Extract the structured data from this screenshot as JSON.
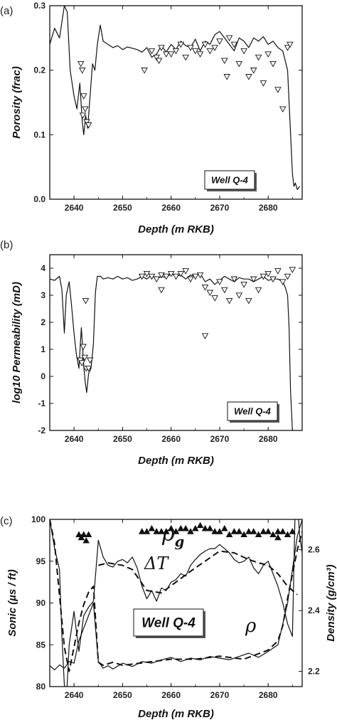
{
  "chart_data": [
    {
      "type": "line",
      "panel": "(a)",
      "xlabel": "Depth (m RKB)",
      "ylabel": "Porosity (frac)",
      "xlim": [
        2635,
        2687
      ],
      "ylim": [
        0.0,
        0.3
      ],
      "xticks": [
        "2640",
        "2650",
        "2660",
        "2670",
        "2680"
      ],
      "yticks": [
        "0.0",
        "0.1",
        "0.2",
        "0.3"
      ],
      "legend": "Well Q-4",
      "series": [
        {
          "style": "line",
          "x": [
            2635,
            2636,
            2637,
            2638,
            2638.6,
            2639.2,
            2640,
            2640.6,
            2641.2,
            2641.7,
            2642,
            2642.4,
            2642.8,
            2643.3,
            2643.8,
            2644.3,
            2644.8,
            2645.4,
            2646,
            2647,
            2648,
            2649,
            2650,
            2651,
            2652,
            2653,
            2654,
            2655,
            2656,
            2657,
            2658,
            2659,
            2660,
            2661,
            2662,
            2663,
            2664,
            2665,
            2666,
            2667,
            2668,
            2669,
            2670,
            2671,
            2672,
            2673,
            2674,
            2675,
            2676,
            2677,
            2678,
            2679,
            2680,
            2681,
            2682,
            2683,
            2684,
            2684.5,
            2685,
            2685.3,
            2685.6,
            2686,
            2686.5
          ],
          "y": [
            0.24,
            0.265,
            0.25,
            0.3,
            0.29,
            0.2,
            0.16,
            0.14,
            0.18,
            0.12,
            0.1,
            0.13,
            0.11,
            0.16,
            0.21,
            0.2,
            0.24,
            0.27,
            0.245,
            0.24,
            0.235,
            0.238,
            0.232,
            0.236,
            0.234,
            0.232,
            0.228,
            0.235,
            0.22,
            0.225,
            0.238,
            0.228,
            0.24,
            0.232,
            0.245,
            0.238,
            0.235,
            0.248,
            0.23,
            0.245,
            0.24,
            0.255,
            0.26,
            0.25,
            0.24,
            0.23,
            0.25,
            0.245,
            0.235,
            0.25,
            0.245,
            0.252,
            0.24,
            0.245,
            0.235,
            0.23,
            0.2,
            0.12,
            0.04,
            0.02,
            0.025,
            0.015,
            0.02
          ]
        },
        {
          "style": "triangle-down",
          "x": [
            2641.4,
            2641.7,
            2642,
            2642.3,
            2642.6,
            2643,
            2641.8,
            2654.5,
            2656,
            2657,
            2657.5,
            2658,
            2659,
            2660,
            2661,
            2662,
            2663,
            2664,
            2665,
            2666,
            2667,
            2668,
            2669,
            2670,
            2671,
            2671.5,
            2672,
            2673,
            2674,
            2675,
            2676,
            2677,
            2678,
            2679,
            2680,
            2681,
            2682,
            2683,
            2684,
            2684.5
          ],
          "y": [
            0.21,
            0.2,
            0.16,
            0.14,
            0.12,
            0.115,
            0.13,
            0.2,
            0.23,
            0.22,
            0.215,
            0.235,
            0.225,
            0.225,
            0.23,
            0.24,
            0.22,
            0.235,
            0.23,
            0.225,
            0.24,
            0.23,
            0.235,
            0.245,
            0.215,
            0.19,
            0.25,
            0.24,
            0.21,
            0.23,
            0.19,
            0.2,
            0.22,
            0.18,
            0.225,
            0.21,
            0.17,
            0.14,
            0.235,
            0.24
          ]
        }
      ]
    },
    {
      "type": "line",
      "panel": "(b)",
      "xlabel": "Depth (m RKB)",
      "ylabel": "log10 Permeability (mD)",
      "xlim": [
        2635,
        2687
      ],
      "ylim": [
        -2,
        4.5
      ],
      "xticks": [
        "2640",
        "2650",
        "2660",
        "2670",
        "2680"
      ],
      "yticks": [
        "-2",
        "-1",
        "0",
        "1",
        "2",
        "3",
        "4"
      ],
      "legend": "Well Q-4",
      "series": [
        {
          "style": "line",
          "x": [
            2635,
            2636,
            2637,
            2637.5,
            2638,
            2638.4,
            2639,
            2639.5,
            2640,
            2640.5,
            2641,
            2641.5,
            2642,
            2642.3,
            2642.6,
            2643,
            2643.5,
            2644,
            2644.4,
            2644.8,
            2645.5,
            2646,
            2647,
            2648,
            2649,
            2650,
            2651,
            2652,
            2653,
            2654,
            2655,
            2656,
            2657,
            2658,
            2659,
            2660,
            2661,
            2662,
            2663,
            2664,
            2665,
            2666,
            2667,
            2668,
            2669,
            2670,
            2671,
            2672,
            2673,
            2674,
            2675,
            2676,
            2677,
            2678,
            2679,
            2680,
            2681,
            2682,
            2683,
            2683.5,
            2684,
            2684.3,
            2684.6,
            2685
          ],
          "y": [
            3.6,
            3.55,
            3.7,
            3.2,
            1.6,
            3.0,
            3.5,
            2.6,
            1.6,
            0.8,
            0.3,
            1.8,
            0.4,
            -0.2,
            -0.6,
            0.1,
            0.3,
            1.2,
            3.1,
            3.7,
            3.7,
            3.6,
            3.65,
            3.6,
            3.7,
            3.6,
            3.65,
            3.55,
            3.6,
            3.7,
            3.6,
            3.75,
            3.6,
            3.7,
            3.65,
            3.8,
            3.7,
            3.75,
            3.6,
            3.75,
            3.7,
            3.8,
            3.5,
            3.6,
            3.4,
            3.55,
            3.7,
            3.6,
            3.5,
            3.65,
            3.6,
            3.6,
            3.5,
            3.6,
            3.7,
            3.55,
            3.6,
            3.6,
            3.5,
            3.3,
            3.0,
            1.8,
            -0.5,
            -2.0
          ]
        },
        {
          "style": "triangle-down",
          "x": [
            2641.3,
            2641.6,
            2641.9,
            2642.2,
            2642.5,
            2643,
            2643.3,
            2642.4,
            2654,
            2655,
            2656,
            2657,
            2658,
            2659,
            2660,
            2661,
            2662,
            2663,
            2664,
            2665,
            2666,
            2667,
            2668,
            2669,
            2670,
            2671,
            2672,
            2673,
            2674,
            2675,
            2676,
            2677,
            2678,
            2679,
            2680,
            2681,
            2682,
            2683,
            2684,
            2685,
            2658,
            2667
          ],
          "y": [
            0.6,
            0.5,
            1.1,
            0.7,
            0.3,
            0.3,
            0.6,
            2.8,
            3.7,
            3.8,
            3.7,
            3.6,
            3.75,
            3.7,
            3.8,
            3.7,
            3.8,
            3.9,
            3.6,
            3.7,
            3.75,
            3.3,
            3.1,
            2.9,
            3.5,
            3.2,
            2.8,
            3.6,
            3.0,
            3.4,
            2.8,
            3.6,
            3.2,
            3.7,
            3.8,
            3.6,
            3.9,
            3.5,
            3.7,
            3.95,
            3.2,
            1.5
          ]
        }
      ]
    },
    {
      "type": "line",
      "panel": "(c)",
      "xlabel": "Depth (m RKB)",
      "ylabel": "Sonic (µs / ft)",
      "ylabel_right": "Density (g/cm³)",
      "xlim": [
        2635,
        2687
      ],
      "ylim": [
        80,
        100
      ],
      "ylim_right": [
        2.15,
        2.7
      ],
      "xticks": [
        "2640",
        "2650",
        "2660",
        "2670",
        "2680"
      ],
      "yticks": [
        "80",
        "85",
        "90",
        "95",
        "100"
      ],
      "yticks_right": [
        "2.2",
        "2.4",
        "2.6"
      ],
      "legend": "Well Q-4",
      "annotations": [
        "ρg",
        "ΔT",
        "ρ"
      ],
      "series": [
        {
          "style": "line",
          "axis": "left",
          "x": [
            2635,
            2636,
            2637,
            2637.5,
            2638,
            2638.5,
            2639,
            2640,
            2641,
            2642,
            2643,
            2644,
            2645,
            2646,
            2647,
            2648,
            2649,
            2650,
            2651,
            2652,
            2653,
            2654,
            2655,
            2656,
            2657,
            2658,
            2659,
            2660,
            2661,
            2662,
            2663,
            2664,
            2665,
            2666,
            2667,
            2668,
            2669,
            2670,
            2671,
            2672,
            2673,
            2674,
            2675,
            2676,
            2677,
            2678,
            2679,
            2680,
            2681,
            2682,
            2683,
            2684,
            2685,
            2685.5,
            2686,
            2686.5,
            2687
          ],
          "y": [
            100,
            96.5,
            94,
            86,
            80.2,
            79.3,
            85,
            89,
            84.2,
            88.5,
            89.5,
            90.2,
            97.5,
            95.5,
            94.5,
            94.3,
            95,
            95.2,
            94.8,
            95.5,
            94.2,
            92,
            90.5,
            91.5,
            90.2,
            91.8,
            91.5,
            92.5,
            92.8,
            93.5,
            93.2,
            94.5,
            95.2,
            95.8,
            96.2,
            96.5,
            96.5,
            97,
            96.5,
            96,
            95.2,
            94.8,
            95,
            95.5,
            94.2,
            93.5,
            94.5,
            95,
            93.5,
            92,
            90,
            87.5,
            86,
            100,
            102,
            98,
            96
          ]
        },
        {
          "style": "line",
          "axis": "left",
          "x": [
            2635,
            2636,
            2637,
            2638,
            2639,
            2640,
            2641,
            2642,
            2643,
            2644,
            2645,
            2646,
            2647,
            2648,
            2650,
            2652,
            2654,
            2656,
            2658,
            2660,
            2662,
            2664,
            2666,
            2668,
            2670,
            2672,
            2674,
            2676,
            2678,
            2680,
            2682,
            2683,
            2684,
            2685,
            2686,
            2687
          ],
          "y": [
            82.5,
            82,
            82.6,
            82.2,
            83,
            82.8,
            85.5,
            87,
            88.5,
            90,
            83,
            82.2,
            82.5,
            82.1,
            82.8,
            82.4,
            83,
            82.8,
            83.2,
            83.5,
            83,
            83.4,
            83.2,
            83.6,
            83.4,
            83.2,
            83.6,
            84,
            83.5,
            84.2,
            85,
            87.5,
            90,
            94,
            98,
            100
          ]
        },
        {
          "style": "dashed",
          "axis": "right",
          "x": [
            2635,
            2636,
            2637,
            2638,
            2639,
            2640,
            2641,
            2642,
            2643,
            2644,
            2645,
            2646,
            2648,
            2650,
            2655,
            2660,
            2665,
            2670,
            2675,
            2680,
            2682,
            2683,
            2684,
            2685,
            2686,
            2687
          ],
          "y": [
            2.7,
            2.62,
            2.45,
            2.28,
            2.2,
            2.28,
            2.36,
            2.42,
            2.46,
            2.48,
            2.23,
            2.22,
            2.23,
            2.22,
            2.23,
            2.24,
            2.24,
            2.25,
            2.24,
            2.27,
            2.3,
            2.35,
            2.44,
            2.52,
            2.6,
            2.66
          ]
        },
        {
          "style": "dashed",
          "axis": "left",
          "x": [
            2645,
            2647,
            2650,
            2652,
            2655,
            2658,
            2661,
            2664,
            2667,
            2670,
            2673,
            2676,
            2678,
            2680,
            2682,
            2684,
            2686
          ],
          "y": [
            94.5,
            94.8,
            94.5,
            94,
            91.5,
            91.2,
            92.5,
            93.8,
            95,
            96.2,
            96,
            95.2,
            94.8,
            94.5,
            93.5,
            92,
            91
          ]
        },
        {
          "style": "triangle-up",
          "axis": "right",
          "x": [
            2641,
            2641.5,
            2642,
            2642.5,
            2643,
            2654,
            2655,
            2656,
            2657,
            2658,
            2659,
            2660,
            2661,
            2662,
            2663,
            2664,
            2665,
            2666,
            2667,
            2668,
            2669,
            2670,
            2671,
            2672,
            2673,
            2674,
            2675,
            2676,
            2677,
            2678,
            2679,
            2680,
            2681,
            2682,
            2683,
            2684,
            2685,
            2667,
            2670,
            2676,
            2680,
            2682
          ],
          "y": [
            2.65,
            2.64,
            2.65,
            2.63,
            2.65,
            2.66,
            2.66,
            2.67,
            2.66,
            2.66,
            2.66,
            2.67,
            2.66,
            2.67,
            2.67,
            2.66,
            2.67,
            2.68,
            2.67,
            2.67,
            2.66,
            2.66,
            2.67,
            2.65,
            2.66,
            2.66,
            2.65,
            2.66,
            2.66,
            2.65,
            2.66,
            2.66,
            2.65,
            2.66,
            2.66,
            2.65,
            2.66,
            2.74,
            2.72,
            2.73,
            2.73,
            2.64
          ]
        }
      ]
    }
  ]
}
